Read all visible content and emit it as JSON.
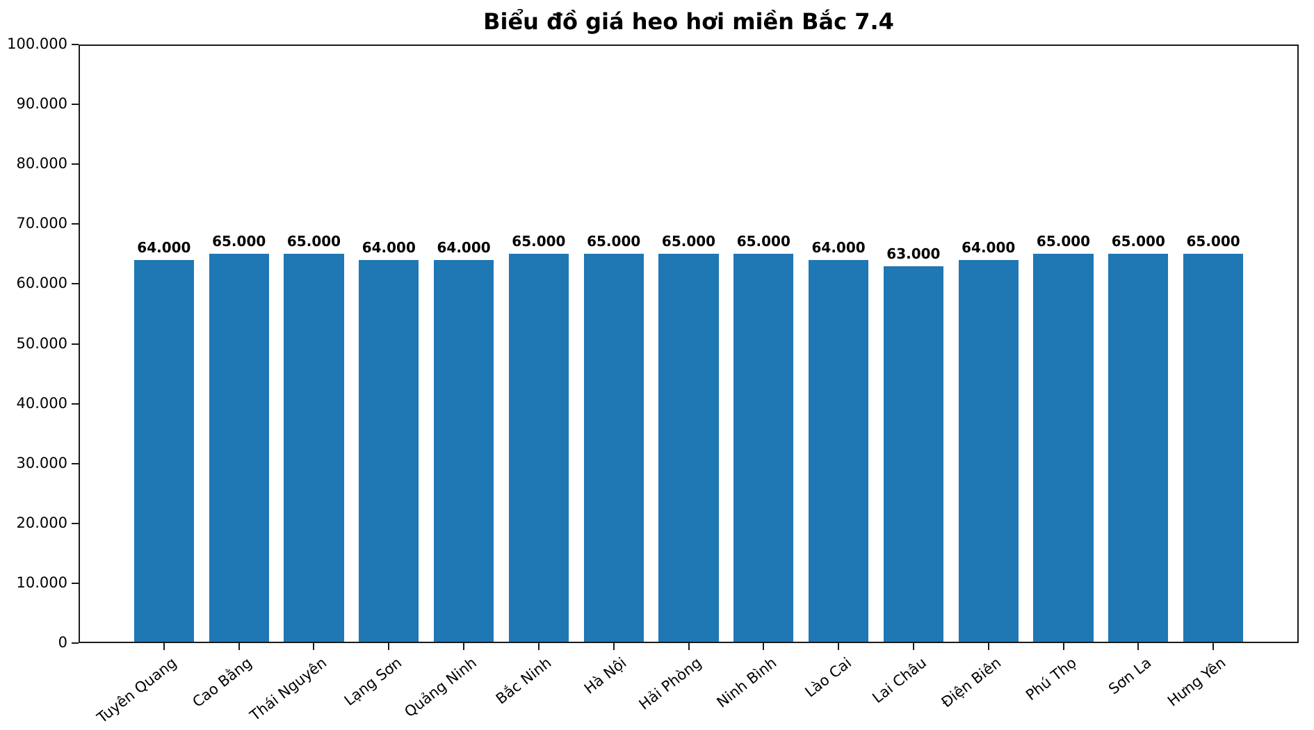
{
  "chart_data": {
    "type": "bar",
    "title": "Biểu đồ giá heo hơi miền Bắc 7.4",
    "categories": [
      "Tuyên Quang",
      "Cao Bằng",
      "Thái Nguyên",
      "Lạng Sơn",
      "Quảng Ninh",
      "Bắc Ninh",
      "Hà Nội",
      "Hải Phòng",
      "Ninh Bình",
      "Lào Cai",
      "Lai Châu",
      "Điện Biên",
      "Phú Thọ",
      "Sơn La",
      "Hưng Yên"
    ],
    "values": [
      64000,
      65000,
      65000,
      64000,
      64000,
      65000,
      65000,
      65000,
      65000,
      64000,
      63000,
      64000,
      65000,
      65000,
      65000
    ],
    "value_labels": [
      "64.000",
      "65.000",
      "65.000",
      "64.000",
      "64.000",
      "65.000",
      "65.000",
      "65.000",
      "65.000",
      "64.000",
      "63.000",
      "64.000",
      "65.000",
      "65.000",
      "65.000"
    ],
    "xlabel": "",
    "ylabel": "",
    "ylim": [
      0,
      100000
    ],
    "yticks": [
      0,
      10000,
      20000,
      30000,
      40000,
      50000,
      60000,
      70000,
      80000,
      90000,
      100000
    ],
    "ytick_labels": [
      "0",
      "10.000",
      "20.000",
      "30.000",
      "40.000",
      "50.000",
      "60.000",
      "70.000",
      "80.000",
      "90.000",
      "100.000"
    ],
    "grid": false,
    "legend": "none",
    "bar_color": "#1f77b4",
    "axis_color": "#1a1a1a",
    "text_color": "#000000"
  }
}
